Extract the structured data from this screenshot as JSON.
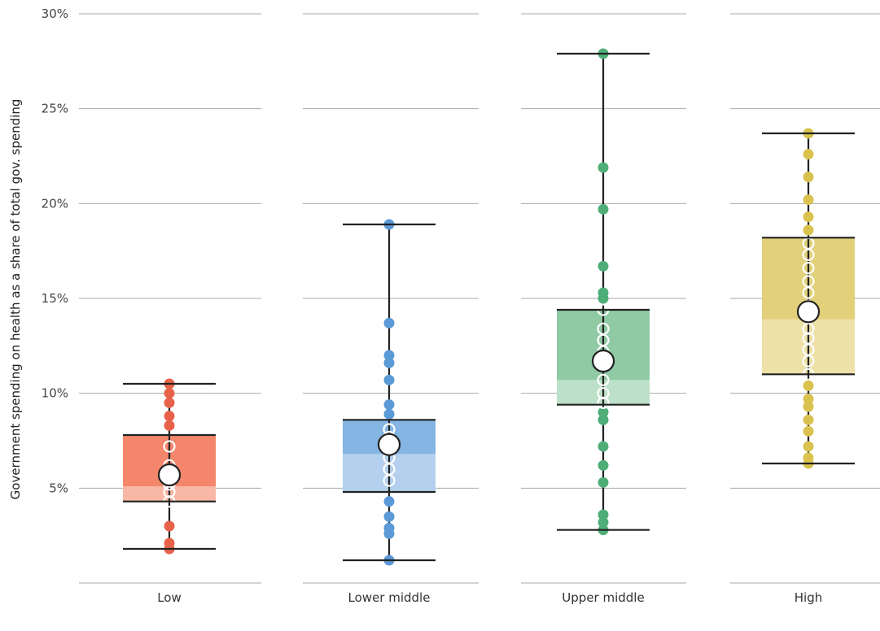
{
  "chart_data": {
    "type": "box",
    "ylabel": "Government spending on health as a share of total gov. spending",
    "ylim": [
      0,
      30
    ],
    "yticks": [
      5,
      10,
      15,
      20,
      25,
      30
    ],
    "ytick_labels": [
      "5%",
      "10%",
      "15%",
      "20%",
      "25%",
      "30%"
    ],
    "grid": "horizontal",
    "groups": [
      {
        "category": "Low",
        "color": "#f4876b",
        "color_light": "#f8b8a5",
        "point_color": "#e8624a",
        "min": 1.8,
        "q1": 4.3,
        "median": 5.1,
        "q3": 7.8,
        "max": 10.5,
        "mean": 5.7,
        "points": [
          1.8,
          2.1,
          3.0,
          4.3,
          4.8,
          5.2,
          5.7,
          6.2,
          7.2,
          8.3,
          8.8,
          9.5,
          10.0,
          10.5
        ]
      },
      {
        "category": "Lower middle",
        "color": "#84b5e3",
        "color_light": "#b4d0ee",
        "point_color": "#5b9ad6",
        "min": 1.2,
        "q1": 4.8,
        "median": 6.8,
        "q3": 8.6,
        "max": 18.9,
        "mean": 7.3,
        "points": [
          1.2,
          2.6,
          2.9,
          3.5,
          4.3,
          5.4,
          6.0,
          6.6,
          7.2,
          7.7,
          8.1,
          8.9,
          9.4,
          10.7,
          11.6,
          12.0,
          13.7,
          18.9
        ]
      },
      {
        "category": "Upper middle",
        "color": "#8fcaa5",
        "color_light": "#bde0c9",
        "point_color": "#4fae78",
        "min": 2.8,
        "q1": 9.4,
        "median": 10.7,
        "q3": 14.4,
        "max": 27.9,
        "mean": 11.7,
        "points": [
          2.8,
          3.2,
          3.6,
          5.3,
          6.2,
          7.2,
          8.6,
          9.0,
          9.5,
          10.0,
          10.7,
          11.5,
          12.2,
          12.8,
          13.4,
          14.4,
          15.0,
          15.3,
          16.7,
          19.7,
          21.9,
          27.9
        ]
      },
      {
        "category": "High",
        "color": "#e2d07a",
        "color_light": "#ede1a8",
        "point_color": "#d9c24e",
        "min": 6.3,
        "q1": 11.0,
        "median": 13.9,
        "q3": 18.2,
        "max": 23.7,
        "mean": 14.3,
        "points": [
          6.3,
          6.6,
          7.2,
          8.0,
          8.6,
          9.3,
          9.7,
          10.4,
          11.0,
          11.7,
          12.3,
          12.9,
          13.4,
          14.0,
          14.6,
          15.3,
          15.9,
          16.6,
          17.3,
          17.9,
          18.6,
          19.3,
          20.2,
          21.4,
          22.6,
          23.7
        ]
      }
    ]
  }
}
